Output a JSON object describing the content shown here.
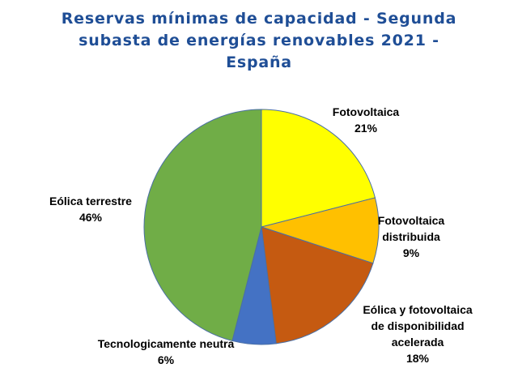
{
  "chart_data": {
    "type": "pie",
    "title_lines": [
      "Reservas mínimas de capacidad - Segunda",
      "subasta de energías renovables 2021 -",
      "España"
    ],
    "start_angle_deg": 0,
    "direction": "clockwise",
    "slices": [
      {
        "name": "Fotovoltaica",
        "label_lines": [
          "Fotovoltaica"
        ],
        "value": 21,
        "value_label": "21%",
        "color": "#ffff00"
      },
      {
        "name": "Fotovoltaica distribuida",
        "label_lines": [
          "Fotovoltaica",
          "distribuida"
        ],
        "value": 9,
        "value_label": "9%",
        "color": "#ffc000"
      },
      {
        "name": "Eólica y fotovoltaica de disponibilidad acelerada",
        "label_lines": [
          "Eólica y fotovoltaica",
          "de disponibilidad",
          "acelerada"
        ],
        "value": 18,
        "value_label": "18%",
        "color": "#c55a11"
      },
      {
        "name": "Tecnologicamente neutra",
        "label_lines": [
          "Tecnologicamente neutra"
        ],
        "value": 6,
        "value_label": "6%",
        "color": "#4472c4"
      },
      {
        "name": "Eólica terrestre",
        "label_lines": [
          "Eólica terrestre"
        ],
        "value": 46,
        "value_label": "46%",
        "color": "#70ad47"
      }
    ]
  }
}
